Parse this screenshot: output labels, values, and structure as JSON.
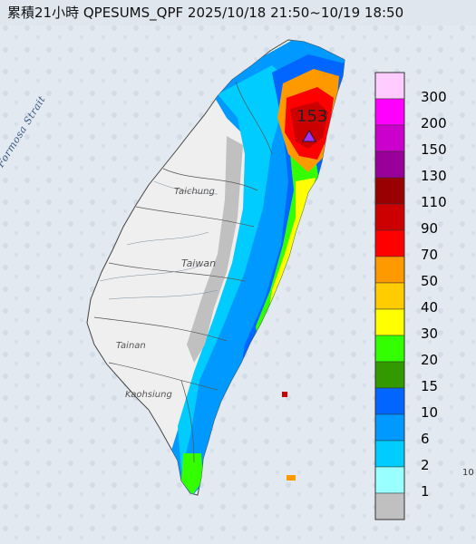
{
  "title": "累積21小時 QPESUMS_QPF 2025/10/18 21:50~10/19 18:50",
  "map": {
    "sea_label": "Formosa Strait",
    "island_label": "Taiwan",
    "city_labels": [
      "Taichung",
      "Tainan",
      "Kaohsiung"
    ],
    "max_value": "153",
    "corner_mark": "10"
  },
  "legend": {
    "items": [
      {
        "label": "300",
        "color": "#ffccff"
      },
      {
        "label": "200",
        "color": "#ff00ff"
      },
      {
        "label": "150",
        "color": "#cc00cc"
      },
      {
        "label": "130",
        "color": "#990099"
      },
      {
        "label": "110",
        "color": "#990000"
      },
      {
        "label": "90",
        "color": "#cc0000"
      },
      {
        "label": "70",
        "color": "#ff0000"
      },
      {
        "label": "50",
        "color": "#ff9900"
      },
      {
        "label": "40",
        "color": "#ffcc00"
      },
      {
        "label": "30",
        "color": "#ffff00"
      },
      {
        "label": "20",
        "color": "#33ff00"
      },
      {
        "label": "15",
        "color": "#339900"
      },
      {
        "label": "10",
        "color": "#0066ff"
      },
      {
        "label": "6",
        "color": "#0099ff"
      },
      {
        "label": "2",
        "color": "#00ccff"
      },
      {
        "label": "1",
        "color": "#99ffff"
      },
      {
        "label": "",
        "color": "#c0c0c0"
      }
    ]
  }
}
